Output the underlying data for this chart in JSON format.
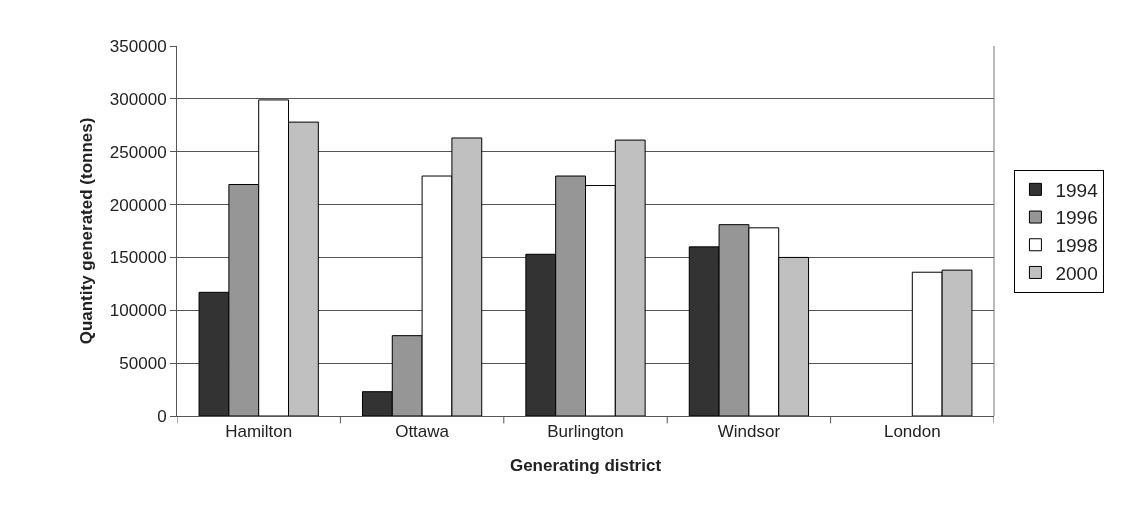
{
  "chart_data": {
    "type": "bar",
    "xlabel": "Generating district",
    "ylabel": "Quantity generated (tonnes)",
    "categories": [
      "Hamilton",
      "Ottawa",
      "Burlington",
      "Windsor",
      "London"
    ],
    "series": [
      {
        "name": "1994",
        "color": "#333333",
        "values": [
          117000,
          23000,
          153000,
          160000,
          null
        ]
      },
      {
        "name": "1996",
        "color": "#969696",
        "values": [
          219000,
          76000,
          227000,
          181000,
          null
        ]
      },
      {
        "name": "1998",
        "color": "#ffffff",
        "values": [
          299000,
          227000,
          218000,
          178000,
          136000
        ]
      },
      {
        "name": "2000",
        "color": "#c0c0c0",
        "values": [
          278000,
          263000,
          261000,
          150000,
          138000
        ]
      }
    ],
    "ylim": [
      0,
      350000
    ],
    "yticks": [
      0,
      50000,
      100000,
      150000,
      200000,
      250000,
      300000,
      350000
    ],
    "grid": "y",
    "legend": "right"
  }
}
